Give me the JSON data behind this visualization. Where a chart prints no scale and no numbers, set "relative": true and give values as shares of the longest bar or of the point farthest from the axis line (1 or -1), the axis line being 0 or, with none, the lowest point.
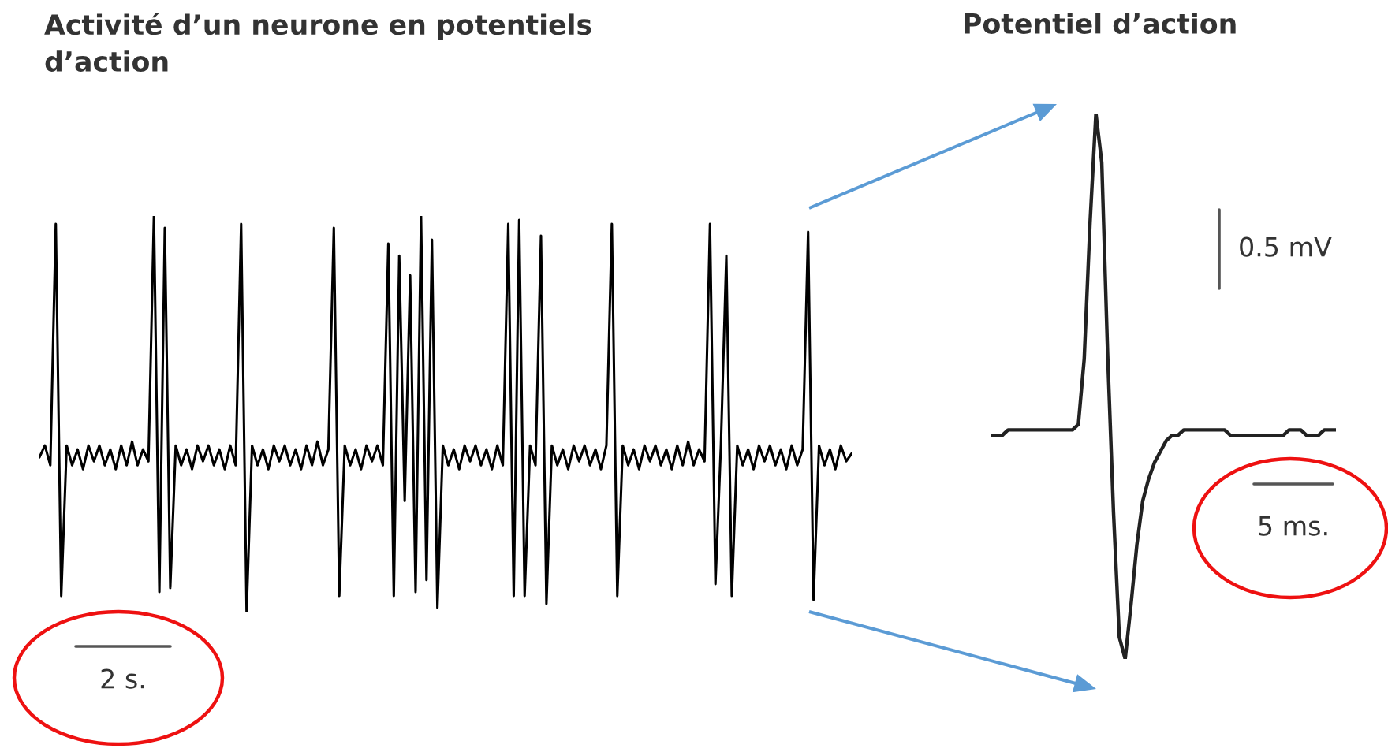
{
  "chart_data": [
    {
      "type": "line",
      "title": "Activité d’un neurone en potentiels d’action",
      "relative": true,
      "categories": [
        null,
        null,
        null,
        null,
        null,
        null,
        null,
        null,
        null,
        null,
        null,
        null,
        null,
        null,
        null,
        null,
        null,
        null,
        null,
        null,
        null,
        null,
        null,
        null,
        null,
        null,
        null,
        null,
        null,
        null,
        null,
        null,
        null,
        null,
        null,
        null,
        null,
        null,
        null,
        null,
        null,
        null,
        null,
        null,
        null,
        null,
        null,
        null,
        null,
        null,
        null,
        null,
        null,
        null,
        null,
        null,
        null,
        null,
        null,
        null,
        null,
        null,
        null,
        null,
        null,
        null,
        null,
        null,
        null,
        null,
        null,
        null,
        null,
        null,
        null,
        null,
        null,
        null,
        null,
        null,
        null,
        null,
        null,
        null,
        null,
        null,
        null,
        null,
        null,
        null,
        null,
        null,
        null,
        null,
        null,
        null,
        null,
        null,
        null,
        null,
        null,
        null,
        null,
        null,
        null,
        null,
        null,
        null,
        null,
        null,
        null,
        null,
        null,
        null,
        null,
        null,
        null,
        null,
        null,
        null,
        null,
        null,
        null,
        null,
        null,
        null,
        null,
        null,
        null,
        null,
        null,
        null,
        null,
        null,
        null,
        null,
        null,
        null,
        null,
        null,
        null,
        null,
        null,
        null,
        null,
        null,
        null,
        null,
        null,
        null
      ],
      "series": [
        {
          "color": "#000000",
          "values": [
            0.39,
            0.42,
            0.37,
            0.98,
            0.04,
            0.42,
            0.37,
            0.41,
            0.36,
            0.42,
            0.38,
            0.42,
            0.37,
            0.41,
            0.36,
            0.42,
            0.37,
            0.43,
            0.37,
            0.41,
            0.38,
            1.0,
            0.05,
            0.97,
            0.06,
            0.42,
            0.37,
            0.41,
            0.36,
            0.42,
            0.38,
            0.42,
            0.37,
            0.41,
            0.36,
            0.42,
            0.37,
            0.98,
            0,
            0.42,
            0.37,
            0.41,
            0.36,
            0.42,
            0.38,
            0.42,
            0.37,
            0.41,
            0.36,
            0.42,
            0.37,
            0.43,
            0.37,
            0.41,
            0.97,
            0.04,
            0.42,
            0.37,
            0.41,
            0.36,
            0.42,
            0.38,
            0.42,
            0.37,
            0.93,
            0.04,
            0.9,
            0.28,
            0.85,
            0.05,
            1.0,
            0.08,
            0.94,
            0.01,
            0.42,
            0.37,
            0.41,
            0.36,
            0.42,
            0.38,
            0.42,
            0.37,
            0.41,
            0.36,
            0.42,
            0.37,
            0.98,
            0.04,
            0.99,
            0.04,
            0.42,
            0.37,
            0.95,
            0.02,
            0.42,
            0.37,
            0.41,
            0.36,
            0.42,
            0.38,
            0.42,
            0.37,
            0.41,
            0.36,
            0.42,
            0.98,
            0.04,
            0.42,
            0.37,
            0.41,
            0.36,
            0.42,
            0.38,
            0.42,
            0.37,
            0.41,
            0.36,
            0.42,
            0.37,
            0.43,
            0.37,
            0.41,
            0.38,
            0.98,
            0.07,
            0.42,
            0.9,
            0.04,
            0.42,
            0.37,
            0.41,
            0.36,
            0.42,
            0.38,
            0.42,
            0.37,
            0.41,
            0.36,
            0.42,
            0.37,
            0.41,
            0.96,
            0.03,
            0.42,
            0.37,
            0.41,
            0.36,
            0.42,
            0.38,
            0.4
          ]
        }
      ],
      "annotations": [
        "2 s."
      ]
    },
    {
      "type": "line",
      "title": "Potentiel d’action",
      "relative": true,
      "categories": [
        null,
        null,
        null,
        null,
        null,
        null,
        null,
        null,
        null,
        null,
        null,
        null,
        null,
        null,
        null,
        null,
        null,
        null,
        null,
        null,
        null,
        null,
        null,
        null,
        null,
        null,
        null,
        null,
        null,
        null,
        null,
        null,
        null,
        null,
        null,
        null,
        null,
        null,
        null,
        null,
        null,
        null,
        null,
        null,
        null,
        null,
        null,
        null,
        null,
        null,
        null,
        null,
        null,
        null,
        null,
        null,
        null,
        null,
        null,
        null
      ],
      "series": [
        {
          "color": "#222222",
          "values": [
            0.41,
            0.41,
            0.41,
            0.42,
            0.42,
            0.42,
            0.42,
            0.42,
            0.42,
            0.42,
            0.42,
            0.42,
            0.42,
            0.42,
            0.42,
            0.43,
            0.55,
            0.8,
            1.0,
            0.91,
            0.56,
            0.27,
            0.04,
            0,
            0.1,
            0.21,
            0.29,
            0.33,
            0.36,
            0.38,
            0.4,
            0.41,
            0.41,
            0.42,
            0.42,
            0.42,
            0.42,
            0.42,
            0.42,
            0.42,
            0.42,
            0.41,
            0.41,
            0.41,
            0.41,
            0.41,
            0.41,
            0.41,
            0.41,
            0.41,
            0.41,
            0.42,
            0.42,
            0.42,
            0.41,
            0.41,
            0.41,
            0.42,
            0.42,
            0.42
          ]
        }
      ],
      "annotations": [
        "0.5 mV",
        "5 ms."
      ]
    }
  ]
}
